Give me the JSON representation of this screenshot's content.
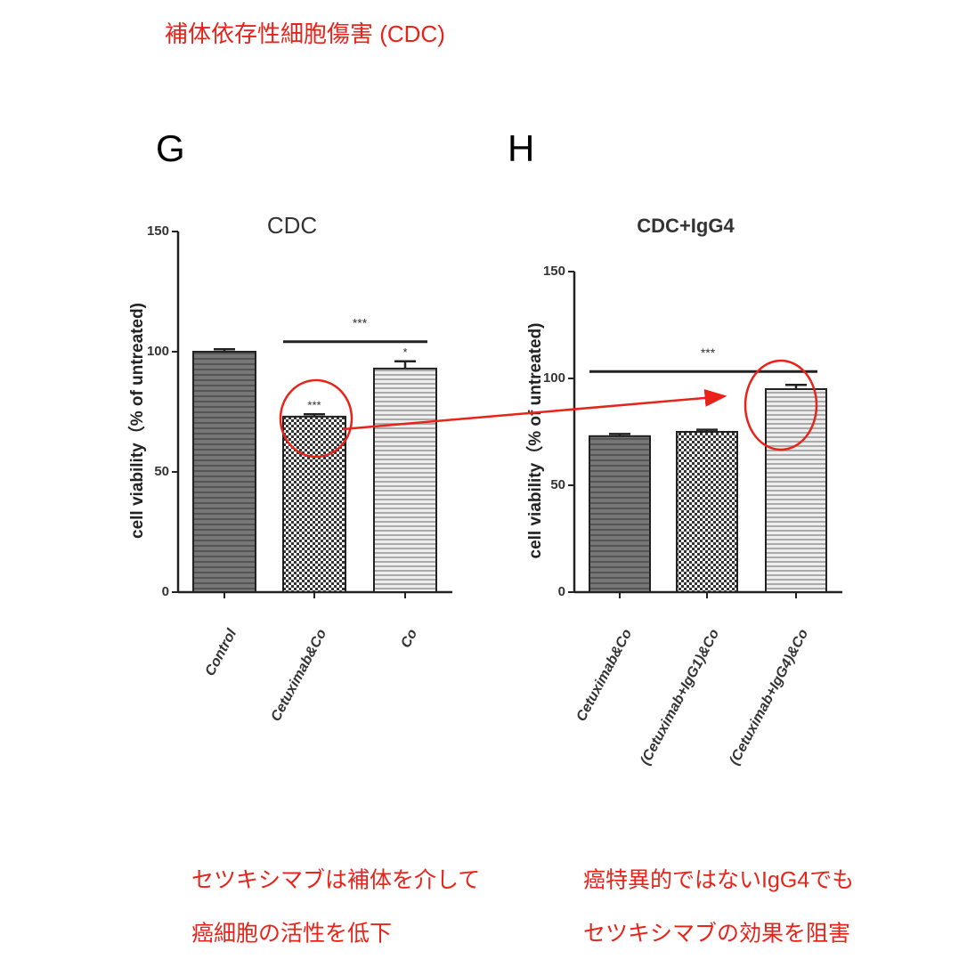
{
  "title": "補体依存性細胞傷害 (CDC)",
  "notes": [
    [
      "セツキシマブは補体を介して",
      "癌細胞の活性を低下"
    ],
    [
      "癌特異的ではないIgG4でも",
      "セツキシマブの効果を阻害"
    ]
  ],
  "chart_data": [
    {
      "type": "bar",
      "panel": "G",
      "title": "CDC",
      "y_label": "cell viability（% of untreated)",
      "categories": [
        "Control",
        "Cetuximab&Co",
        "Co"
      ],
      "values": [
        100,
        73,
        93
      ],
      "errors": [
        1,
        1,
        3
      ],
      "bar_labels": [
        null,
        "***",
        "*"
      ],
      "brackets": [
        {
          "label": "***",
          "categories": [
            "Cetuximab&Co",
            "Co"
          ]
        }
      ],
      "ylim": [
        0,
        150
      ],
      "yticks": [
        0,
        50,
        100,
        150
      ],
      "color": "#222222"
    },
    {
      "type": "bar",
      "panel": "H",
      "title": "CDC+IgG4",
      "y_label": "cell viability（% of untreated)",
      "categories": [
        "Cetuximab&Co",
        "(Cetuximab+IgG1)&Co",
        "(Cetuximab+IgG4)&Co"
      ],
      "values": [
        73,
        75,
        95
      ],
      "errors": [
        1,
        1,
        2
      ],
      "bar_labels": [
        null,
        null,
        null
      ],
      "brackets": [
        {
          "label": "***",
          "categories": [
            "Cetuximab&Co",
            "(Cetuximab+IgG4)&Co"
          ]
        }
      ],
      "ylim": [
        0,
        150
      ],
      "yticks": [
        0,
        50,
        100,
        150
      ],
      "color": "#222222"
    }
  ]
}
